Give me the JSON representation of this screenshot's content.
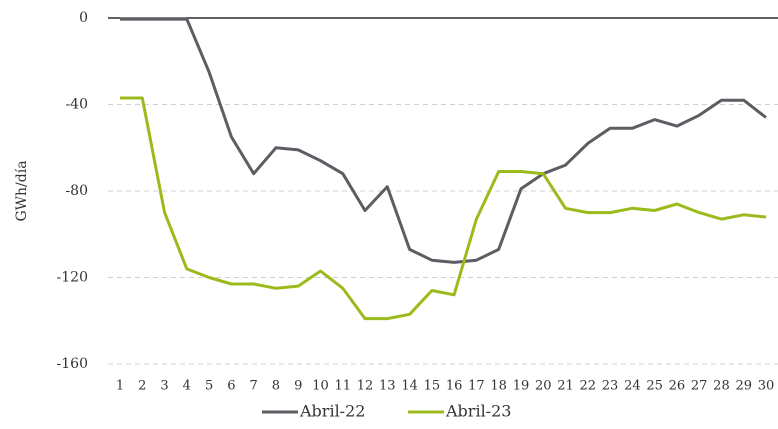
{
  "chart_data": {
    "type": "line",
    "y_label": "GWh/día",
    "categories": [
      "1",
      "2",
      "3",
      "4",
      "5",
      "6",
      "7",
      "8",
      "9",
      "10",
      "11",
      "12",
      "13",
      "14",
      "15",
      "16",
      "17",
      "18",
      "19",
      "20",
      "21",
      "22",
      "23",
      "24",
      "25",
      "26",
      "27",
      "28",
      "29",
      "30"
    ],
    "series": [
      {
        "name": "Abril-22",
        "color": "#5d5d63",
        "values": [
          -0.5,
          -0.5,
          -0.5,
          -0.5,
          -25,
          -55,
          -72,
          -60,
          -61,
          -66,
          -72,
          -89,
          -78,
          -107,
          -112,
          -113,
          -112,
          -107,
          -79,
          -72,
          -68,
          -58,
          -51,
          -51,
          -47,
          -50,
          -45,
          -38,
          -38,
          -46
        ]
      },
      {
        "name": "Abril-23",
        "color": "#9bbb1c",
        "values": [
          -37,
          -37,
          -90,
          -116,
          -120,
          -123,
          -123,
          -125,
          -124,
          -117,
          -125,
          -139,
          -139,
          -137,
          -126,
          -128,
          -93,
          -71,
          -71,
          -72,
          -88,
          -90,
          -90,
          -88,
          -89,
          -86,
          -90,
          -93,
          -91,
          -92
        ]
      }
    ],
    "ylim": [
      -160,
      0
    ],
    "yticks": [
      0,
      -40,
      -80,
      -120,
      -160
    ],
    "grid": true,
    "legend": "bottom"
  }
}
